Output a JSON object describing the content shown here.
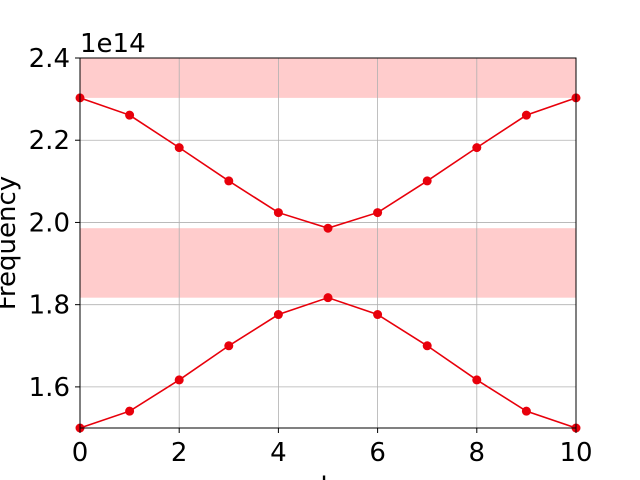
{
  "chart_data": {
    "type": "line",
    "title": "",
    "xlabel": "k",
    "ylabel": "Frequency",
    "y_offset_label": "1e14",
    "xlim": [
      0,
      10
    ],
    "ylim": [
      1.5,
      2.4
    ],
    "x_ticks": [
      0,
      2,
      4,
      6,
      8,
      10
    ],
    "x_tick_labels": [
      "0",
      "2",
      "4",
      "6",
      "8",
      "10"
    ],
    "y_ticks": [
      1.6,
      1.8,
      2.0,
      2.2,
      2.4
    ],
    "y_tick_labels": [
      "1.6",
      "1.8",
      "2.0",
      "2.2",
      "2.4"
    ],
    "grid": true,
    "legend": "none",
    "series": [
      {
        "color": "#e8000b",
        "x": [
          0,
          1,
          2,
          3,
          4,
          5,
          6,
          7,
          8,
          9,
          10
        ],
        "values": [
          2.303,
          2.261,
          2.182,
          2.101,
          2.024,
          1.986,
          2.024,
          2.101,
          2.182,
          2.261,
          2.303
        ]
      },
      {
        "color": "#e8000b",
        "x": [
          0,
          1,
          2,
          3,
          4,
          5,
          6,
          7,
          8,
          9,
          10
        ],
        "values": [
          1.5,
          1.541,
          1.617,
          1.7,
          1.776,
          1.817,
          1.776,
          1.7,
          1.617,
          1.541,
          1.5
        ]
      }
    ],
    "bands": [
      {
        "y_range": [
          1.817,
          1.986
        ],
        "color": "#ffcccc"
      },
      {
        "y_range": [
          2.303,
          2.4
        ],
        "color": "#ffcccc"
      }
    ]
  }
}
